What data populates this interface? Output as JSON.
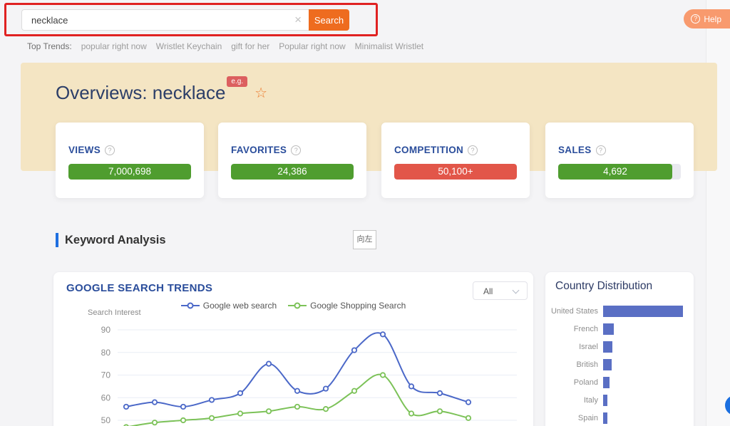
{
  "icons": {
    "question_mark": "?",
    "clear": "×",
    "star": "☆"
  },
  "search": {
    "value": "necklace",
    "button_label": "Search"
  },
  "help": {
    "label": "Help"
  },
  "top_trends": {
    "label": "Top Trends:",
    "items": [
      "popular right now",
      "Wristlet Keychain",
      "gift for her",
      "Popular right now",
      "Minimalist Wristlet"
    ]
  },
  "overview": {
    "title": "Overviews: necklace",
    "badge": "e.g."
  },
  "stats": {
    "cards": [
      {
        "label": "VIEWS",
        "value": "7,000,698",
        "color": "#4f9d2f",
        "fill_pct": 100
      },
      {
        "label": "FAVORITES",
        "value": "24,386",
        "color": "#4f9d2f",
        "fill_pct": 100
      },
      {
        "label": "COMPETITION",
        "value": "50,100+",
        "color": "#e25649",
        "fill_pct": 100
      },
      {
        "label": "SALES",
        "value": "4,692",
        "color": "#4f9d2f",
        "fill_pct": 93
      }
    ]
  },
  "section": {
    "title": "Keyword Analysis",
    "overlay_box": "向左"
  },
  "google_trends": {
    "title": "GOOGLE SEARCH TRENDS",
    "filter_value": "All",
    "chart_data": {
      "type": "line",
      "title": "GOOGLE SEARCH TRENDS",
      "ylabel": "Search Interest",
      "ylim": [
        45,
        95
      ],
      "yticks": [
        50,
        60,
        70,
        80,
        90
      ],
      "grid": true,
      "legend_position": "top",
      "smooth": true,
      "series": [
        {
          "name": "Google web search",
          "color": "#4b68c8",
          "values": [
            56,
            58,
            56,
            59,
            62,
            75,
            63,
            64,
            81,
            88,
            65,
            62,
            58
          ]
        },
        {
          "name": "Google Shopping Search",
          "color": "#7cc258",
          "values": [
            47,
            49,
            50,
            51,
            53,
            54,
            56,
            55,
            63,
            70,
            53,
            54,
            51
          ]
        }
      ]
    }
  },
  "country_distribution": {
    "title": "Country Distribution",
    "chart_data": {
      "type": "bar",
      "orientation": "horizontal",
      "categories": [
        "United States",
        "French",
        "Israel",
        "British",
        "Poland",
        "Italy",
        "Spain"
      ],
      "values": [
        100,
        13,
        12,
        11,
        8,
        5,
        5
      ],
      "color": "#5a6fc4"
    }
  },
  "theme": {
    "page_bg": "#f4f4f6",
    "banner_bg": "#f4e5c3",
    "accent_orange": "#ee6c1f",
    "help_orange": "#f89a6e",
    "annotation_red": "#e02222",
    "label_blue": "#2a4d9b",
    "title_navy": "#2c3e68",
    "good_green": "#4f9d2f",
    "bad_red": "#e25649"
  }
}
